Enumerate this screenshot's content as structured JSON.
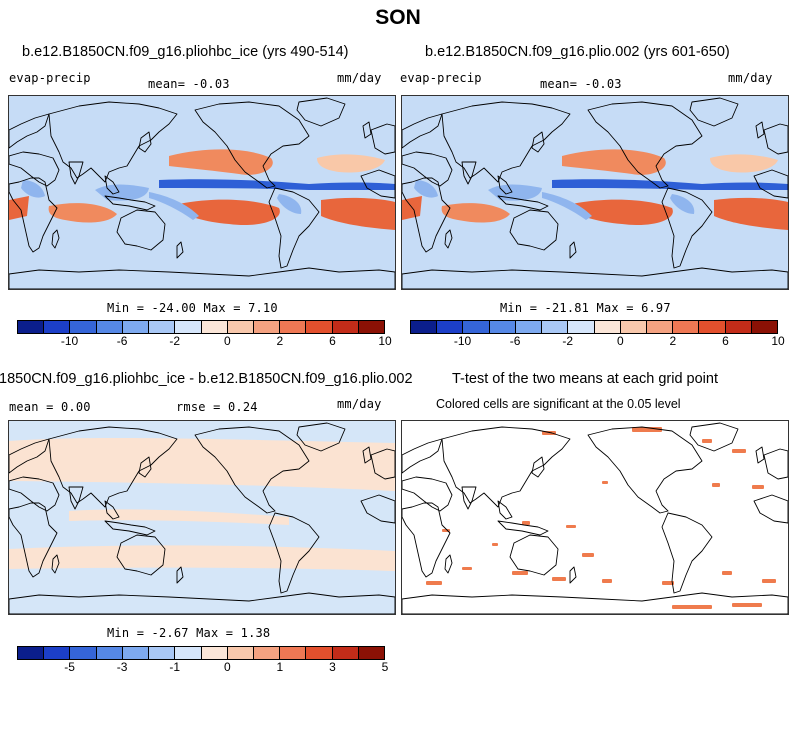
{
  "figure": {
    "title": "SON"
  },
  "panels": [
    {
      "title": "b.e12.B1850CN.f09_g16.pliohbc_ice (yrs 490-514)",
      "left_label": "evap-precip",
      "center_label": "mean=  -0.03",
      "right_label": "mm/day",
      "minmax": "Min = -24.00 Max =   7.10"
    },
    {
      "title": "b.e12.B1850CN.f09_g16.plio.002 (yrs 601-650)",
      "left_label": "evap-precip",
      "center_label": "mean=  -0.03",
      "right_label": "mm/day",
      "minmax": "Min = -21.81 Max =   6.97"
    },
    {
      "title": "1850CN.f09_g16.pliohbc_ice - b.e12.B1850CN.f09_g16.plio.002",
      "left_label": "mean =   0.00",
      "center_label": "rmse =   0.24",
      "right_label": "mm/day",
      "minmax": "Min = -2.67 Max =   1.38"
    },
    {
      "title": "T-test of the two means at each grid point",
      "center_label": "Colored cells are significant at the 0.05 level"
    }
  ],
  "colorbars": {
    "swatches": [
      "#0b1e8c",
      "#1c3fc8",
      "#3565d8",
      "#5688e6",
      "#7eaaf0",
      "#a9c8f6",
      "#d6e6fb",
      "#fbe6d8",
      "#f8c8ac",
      "#f4a281",
      "#ef7854",
      "#e3502d",
      "#c32c19",
      "#8b1105"
    ],
    "fields_ticks": [
      "-10",
      "-6",
      "-2",
      "0",
      "2",
      "6",
      "10"
    ],
    "diff_ticks": [
      "-5",
      "-3",
      "-1",
      "0",
      "1",
      "3",
      "5"
    ]
  },
  "colors": {
    "base_blue": "#c6dcf6",
    "blue_mid": "#8fb5ee",
    "blue_deep": "#2e5fd6",
    "orange_light": "#f9c8a8",
    "orange_mid": "#f08a5e",
    "orange_deep": "#e8663c",
    "diff_base": "#d5e6f8",
    "diff_pos": "#fbe3d2",
    "signif": "#ef7b4d"
  }
}
